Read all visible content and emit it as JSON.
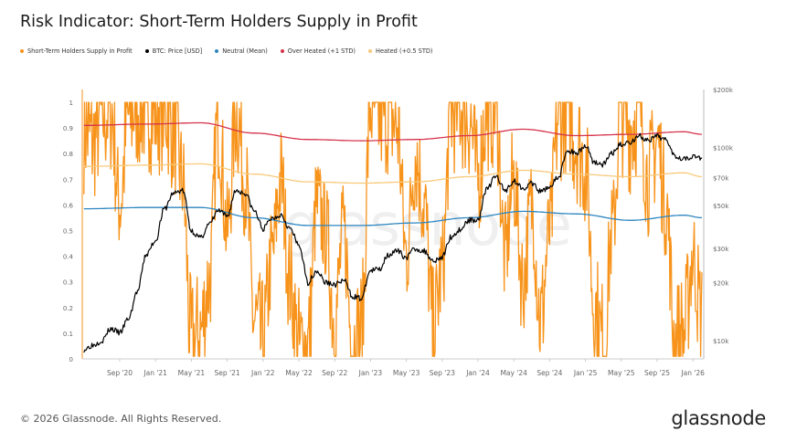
{
  "title": "Risk Indicator: Short-Term Holders Supply in Profit",
  "footer": "© 2026 Glassnode. All Rights Reserved.",
  "brand": "glassnode",
  "watermark": "glassnode",
  "colors": {
    "sth": "#f7931a",
    "btc": "#000000",
    "neutral": "#2e86c1",
    "over": "#d6334b",
    "heated": "#f9c97a"
  },
  "chart_data": {
    "type": "line",
    "title": "Risk Indicator: Short-Term Holders Supply in Profit",
    "start_month": "2020-05",
    "step": "monthly",
    "legend_position": "top-left",
    "legend": [
      "Short-Term Holders Supply in Profit",
      "BTC: Price [USD]",
      "Neutral (Mean)",
      "Over Heated (+1 STD)",
      "Heated (+0.5 STD)"
    ],
    "x_ticks": [
      {
        "label": "Sep '20",
        "m": 4
      },
      {
        "label": "Jan '21",
        "m": 8
      },
      {
        "label": "May '21",
        "m": 12
      },
      {
        "label": "Sep '21",
        "m": 16
      },
      {
        "label": "Jan '22",
        "m": 20
      },
      {
        "label": "May '22",
        "m": 24
      },
      {
        "label": "Sep '22",
        "m": 28
      },
      {
        "label": "Jan '23",
        "m": 32
      },
      {
        "label": "May '23",
        "m": 36
      },
      {
        "label": "Sep '23",
        "m": 40
      },
      {
        "label": "Jan '24",
        "m": 44
      },
      {
        "label": "May '24",
        "m": 48
      },
      {
        "label": "Sep '24",
        "m": 52
      },
      {
        "label": "Jan '25",
        "m": 56
      },
      {
        "label": "May '25",
        "m": 60
      },
      {
        "label": "Sep '25",
        "m": 64
      },
      {
        "label": "Jan '26",
        "m": 68
      }
    ],
    "y_left": {
      "range": [
        0,
        1
      ],
      "ticks": [
        "0",
        "0.1",
        "0.2",
        "0.3",
        "0.4",
        "0.5",
        "0.6",
        "0.7",
        "0.8",
        "0.9",
        "1"
      ]
    },
    "y_right": {
      "scale": "log",
      "range": [
        10000,
        200000
      ],
      "ticks": [
        {
          "label": "$10k",
          "v": 10000
        },
        {
          "label": "$20k",
          "v": 20000
        },
        {
          "label": "$30k",
          "v": 30000
        },
        {
          "label": "$50k",
          "v": 50000
        },
        {
          "label": "$70k",
          "v": 70000
        },
        {
          "label": "$100k",
          "v": 100000
        },
        {
          "label": "$200k",
          "v": 200000
        }
      ]
    },
    "series": [
      {
        "name": "Short-Term Holders Supply in Profit",
        "axis": "left",
        "values": [
          0.9,
          0.85,
          0.95,
          0.98,
          0.6,
          0.95,
          1,
          1,
          0.98,
          1,
          0.9,
          0.7,
          0.05,
          0.1,
          0.3,
          0.95,
          0.5,
          0.98,
          0.7,
          0.15,
          0.05,
          0.4,
          0.7,
          0.3,
          0.03,
          0.05,
          0.6,
          0.5,
          0.15,
          0.5,
          0.05,
          0.1,
          1,
          0.95,
          0.98,
          0.9,
          0.4,
          0.8,
          0.6,
          0.1,
          0.35,
          0.98,
          1,
          0.95,
          0.7,
          1,
          1,
          0.4,
          0.7,
          0.3,
          0.6,
          0.15,
          0.5,
          0.95,
          1,
          0.85,
          0.75,
          0.2,
          0.05,
          0.5,
          0.98,
          0.9,
          1,
          0.7,
          0.85,
          0.6,
          0.05,
          0.1,
          0.4,
          0.15
        ]
      },
      {
        "name": "BTC: Price [USD]",
        "axis": "right",
        "values": [
          9000,
          9500,
          10000,
          11500,
          11000,
          13000,
          18000,
          28000,
          33000,
          48000,
          58000,
          60000,
          37000,
          34000,
          40000,
          47000,
          44000,
          60000,
          58000,
          47000,
          38000,
          43000,
          45000,
          38000,
          31000,
          20000,
          23000,
          20000,
          19500,
          20500,
          17000,
          16500,
          23000,
          23500,
          28000,
          29000,
          27000,
          30000,
          29000,
          26000,
          27000,
          34500,
          37500,
          42000,
          42500,
          61000,
          71000,
          60000,
          67000,
          62000,
          65000,
          59000,
          63000,
          70000,
          96000,
          94000,
          102000,
          84000,
          82000,
          94000,
          104000,
          107000,
          115000,
          108000,
          114000,
          110000,
          91000,
          88000,
          90000,
          88000
        ]
      }
    ],
    "bands": {
      "months": [
        0,
        7,
        13,
        19,
        25,
        31,
        37,
        43,
        49,
        55,
        61,
        67,
        69
      ],
      "series": [
        {
          "name": "Neutral (Mean)",
          "values": [
            0.585,
            0.59,
            0.59,
            0.55,
            0.52,
            0.52,
            0.53,
            0.55,
            0.575,
            0.565,
            0.54,
            0.56,
            0.55
          ]
        },
        {
          "name": "Over Heated (+1 STD)",
          "values": [
            0.91,
            0.915,
            0.92,
            0.88,
            0.855,
            0.85,
            0.855,
            0.87,
            0.895,
            0.87,
            0.875,
            0.885,
            0.875
          ]
        },
        {
          "name": "Heated (+0.5 STD)",
          "values": [
            0.75,
            0.755,
            0.76,
            0.72,
            0.69,
            0.685,
            0.69,
            0.71,
            0.735,
            0.72,
            0.71,
            0.725,
            0.71
          ]
        }
      ]
    }
  }
}
